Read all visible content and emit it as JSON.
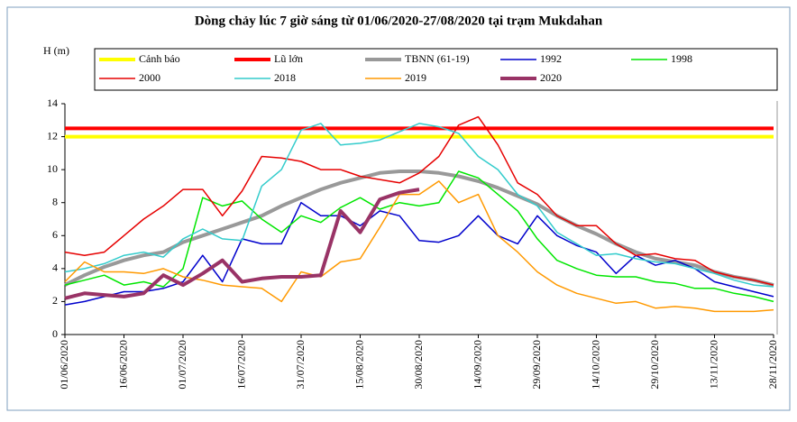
{
  "chart_data": {
    "type": "line",
    "title": "Dòng chảy lúc 7 giờ sáng từ 01/06/2020-27/08/2020 tại trạm Mukdahan",
    "y_label": "H (m)",
    "x": [
      "01/06/2020",
      "06/06/2020",
      "11/06/2020",
      "16/06/2020",
      "21/06/2020",
      "26/06/2020",
      "01/07/2020",
      "06/07/2020",
      "11/07/2020",
      "16/07/2020",
      "21/07/2020",
      "26/07/2020",
      "31/07/2020",
      "05/08/2020",
      "10/08/2020",
      "15/08/2020",
      "20/08/2020",
      "25/08/2020",
      "30/08/2020",
      "04/09/2020",
      "09/09/2020",
      "14/09/2020",
      "19/09/2020",
      "24/09/2020",
      "29/09/2020",
      "04/10/2020",
      "09/10/2020",
      "14/10/2020",
      "19/10/2020",
      "24/10/2020",
      "29/10/2020",
      "03/11/2020",
      "08/11/2020",
      "13/11/2020",
      "18/11/2020",
      "23/11/2020",
      "28/11/2020"
    ],
    "xlim": [
      "01/06/2020",
      "28/11/2020"
    ],
    "xticks": [
      "01/06/2020",
      "16/06/2020",
      "01/07/2020",
      "16/07/2020",
      "31/07/2020",
      "15/08/2020",
      "30/08/2020",
      "14/09/2020",
      "29/09/2020",
      "14/10/2020",
      "29/10/2020",
      "13/11/2020",
      "28/11/2020"
    ],
    "ylim": [
      0,
      14
    ],
    "yticks": [
      0,
      2,
      4,
      6,
      8,
      10,
      12,
      14
    ],
    "series": [
      {
        "name": "Cảnh báo",
        "color": "#ffff00",
        "width": 4,
        "values": [
          12,
          12,
          12,
          12,
          12,
          12,
          12,
          12,
          12,
          12,
          12,
          12,
          12,
          12,
          12,
          12,
          12,
          12,
          12,
          12,
          12,
          12,
          12,
          12,
          12,
          12,
          12,
          12,
          12,
          12,
          12,
          12,
          12,
          12,
          12,
          12,
          12
        ]
      },
      {
        "name": "Lũ lớn",
        "color": "#ff0000",
        "width": 4,
        "values": [
          12.5,
          12.5,
          12.5,
          12.5,
          12.5,
          12.5,
          12.5,
          12.5,
          12.5,
          12.5,
          12.5,
          12.5,
          12.5,
          12.5,
          12.5,
          12.5,
          12.5,
          12.5,
          12.5,
          12.5,
          12.5,
          12.5,
          12.5,
          12.5,
          12.5,
          12.5,
          12.5,
          12.5,
          12.5,
          12.5,
          12.5,
          12.5,
          12.5,
          12.5,
          12.5,
          12.5,
          12.5
        ]
      },
      {
        "name": "TBNN (61-19)",
        "color": "#999999",
        "width": 4,
        "values": [
          3.0,
          3.6,
          4.1,
          4.5,
          4.8,
          5.0,
          5.6,
          6.0,
          6.4,
          6.8,
          7.2,
          7.8,
          8.3,
          8.8,
          9.2,
          9.5,
          9.8,
          9.9,
          9.9,
          9.8,
          9.6,
          9.3,
          8.9,
          8.4,
          7.9,
          7.2,
          6.6,
          6.1,
          5.5,
          5.0,
          4.6,
          4.4,
          4.2,
          3.8,
          3.5,
          3.3,
          3.0
        ]
      },
      {
        "name": "1992",
        "color": "#0000cc",
        "width": 1.5,
        "values": [
          1.8,
          2.0,
          2.3,
          2.6,
          2.6,
          2.8,
          3.2,
          4.8,
          3.2,
          5.8,
          5.5,
          5.5,
          8.0,
          7.2,
          7.2,
          6.6,
          7.5,
          7.2,
          5.7,
          5.6,
          6.0,
          7.2,
          6.0,
          5.5,
          7.2,
          6.0,
          5.4,
          5.0,
          3.7,
          4.8,
          4.2,
          4.5,
          4.0,
          3.2,
          2.9,
          2.6,
          2.3
        ]
      },
      {
        "name": "1998",
        "color": "#00e600",
        "width": 1.5,
        "values": [
          3.0,
          3.3,
          3.6,
          3.0,
          3.2,
          2.9,
          4.0,
          8.3,
          7.8,
          8.1,
          7.0,
          6.2,
          7.2,
          6.8,
          7.7,
          8.3,
          7.6,
          8.0,
          7.8,
          8.0,
          9.9,
          9.5,
          8.5,
          7.5,
          5.8,
          4.5,
          4.0,
          3.6,
          3.5,
          3.5,
          3.2,
          3.1,
          2.8,
          2.8,
          2.5,
          2.3,
          2.0
        ]
      },
      {
        "name": "2000",
        "color": "#e60000",
        "width": 1.5,
        "values": [
          5.0,
          4.8,
          5.0,
          6.0,
          7.0,
          7.8,
          8.8,
          8.8,
          7.2,
          8.7,
          10.8,
          10.7,
          10.5,
          10.0,
          10.0,
          9.6,
          9.4,
          9.2,
          9.8,
          10.8,
          12.7,
          13.2,
          11.5,
          9.2,
          8.5,
          7.2,
          6.6,
          6.6,
          5.5,
          4.8,
          4.9,
          4.6,
          4.5,
          3.8,
          3.5,
          3.3,
          3.0
        ]
      },
      {
        "name": "2018",
        "color": "#33cccc",
        "width": 1.5,
        "values": [
          3.8,
          4.0,
          4.3,
          4.8,
          5.0,
          4.7,
          5.8,
          6.4,
          5.8,
          5.7,
          9.0,
          10.0,
          12.4,
          12.8,
          11.5,
          11.6,
          11.8,
          12.3,
          12.8,
          12.6,
          12.2,
          10.8,
          10.0,
          8.5,
          7.8,
          6.2,
          5.5,
          4.8,
          4.9,
          4.6,
          4.4,
          4.3,
          4.0,
          3.7,
          3.3,
          3.0,
          2.9
        ]
      },
      {
        "name": "2019",
        "color": "#ff9900",
        "width": 1.5,
        "values": [
          3.2,
          4.4,
          3.8,
          3.8,
          3.7,
          4.0,
          3.5,
          3.3,
          3.0,
          2.9,
          2.8,
          2.0,
          3.8,
          3.5,
          4.4,
          4.6,
          6.5,
          8.5,
          8.5,
          9.3,
          8.0,
          8.5,
          6.0,
          5.0,
          3.8,
          3.0,
          2.5,
          2.2,
          1.9,
          2.0,
          1.6,
          1.7,
          1.6,
          1.4,
          1.4,
          1.4,
          1.5
        ]
      },
      {
        "name": "2020",
        "color": "#993366",
        "width": 4,
        "values": [
          2.2,
          2.5,
          2.4,
          2.3,
          2.5,
          3.6,
          3.0,
          3.7,
          4.5,
          3.2,
          3.4,
          3.5,
          3.5,
          3.6,
          7.5,
          6.2,
          8.2,
          8.6,
          8.8,
          null,
          null,
          null,
          null,
          null,
          null,
          null,
          null,
          null,
          null,
          null,
          null,
          null,
          null,
          null,
          null,
          null,
          null
        ]
      }
    ]
  }
}
